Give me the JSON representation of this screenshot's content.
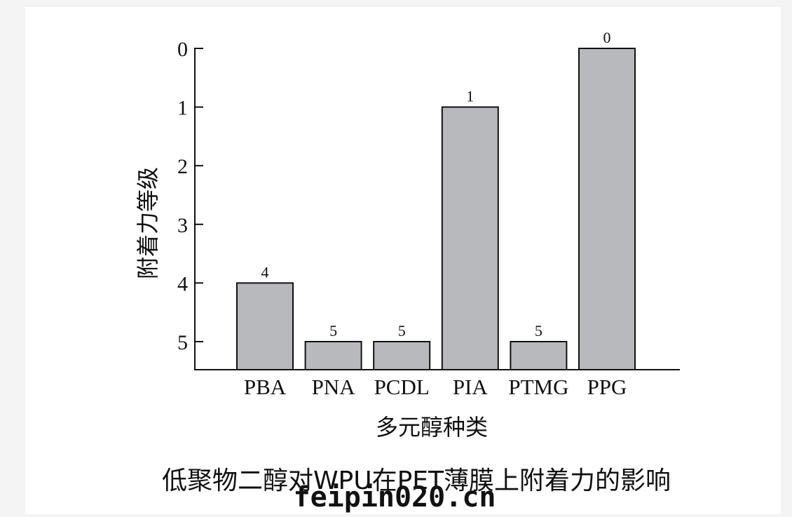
{
  "chart_data": {
    "type": "bar",
    "categories": [
      "PBA",
      "PNA",
      "PCDL",
      "PIA",
      "PTMG",
      "PPG"
    ],
    "values": [
      4,
      5,
      5,
      1,
      5,
      0
    ],
    "data_labels": [
      "4",
      "5",
      "5",
      "1",
      "5",
      "0"
    ],
    "xlabel": "多元醇种类",
    "ylabel": "附着力等级",
    "ylim": [
      0,
      5
    ],
    "y_inverted": true,
    "yticks": [
      0,
      1,
      2,
      3,
      4,
      5
    ],
    "bar_color": "#b8b9bd",
    "bar_edge_color": "#111111",
    "grid": false
  },
  "caption": "低聚物二醇对WPU在PET薄膜上附着力的影响",
  "watermark": "feipin020.cn"
}
